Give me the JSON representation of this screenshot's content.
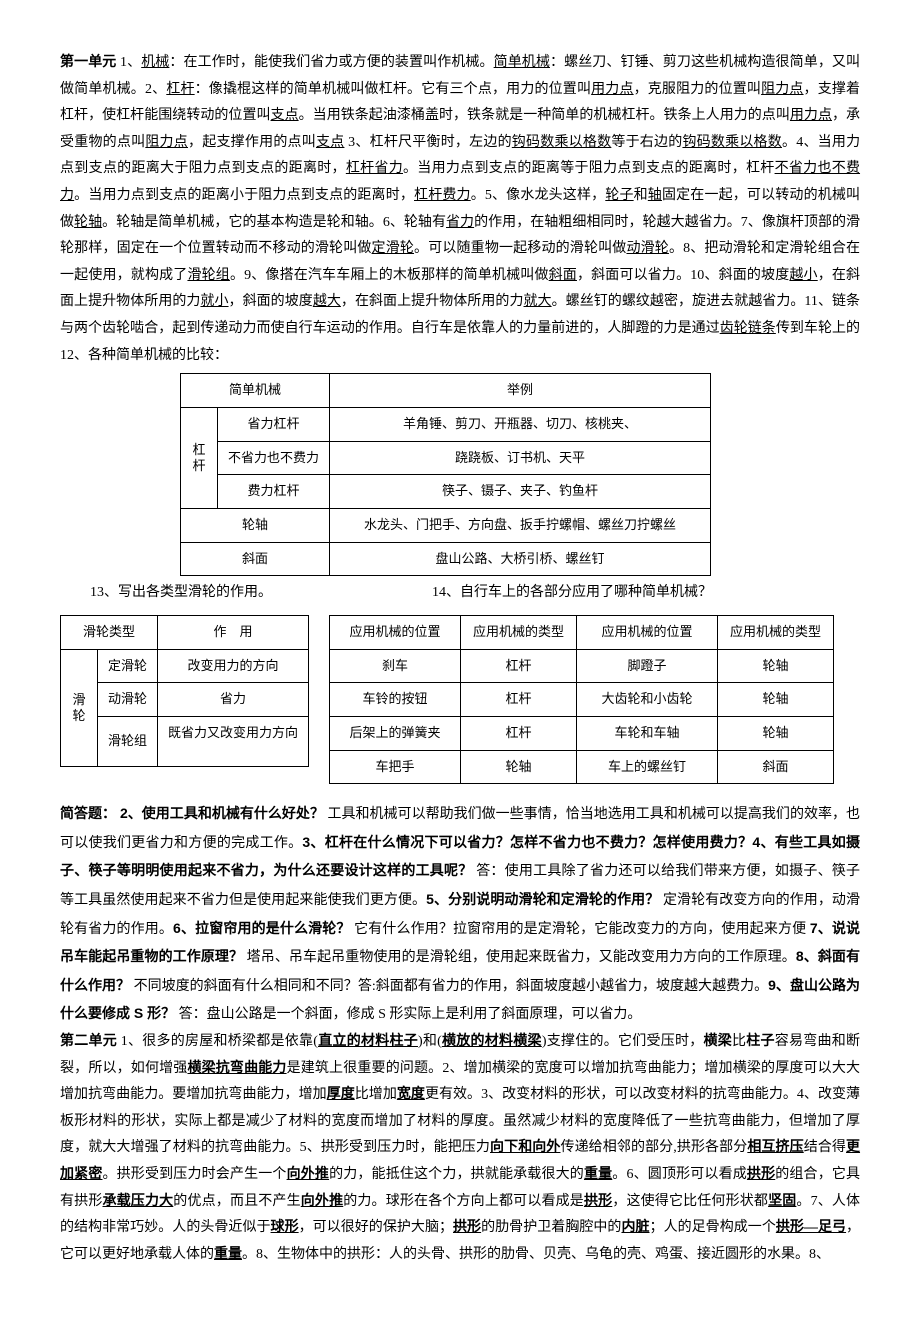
{
  "para1_segments": [
    {
      "t": "第一单元",
      "b": true
    },
    {
      "t": " 1、"
    },
    {
      "t": "机械",
      "u": true
    },
    {
      "t": "：在工作时，能使我们省力或方便的装置叫作机械。"
    },
    {
      "t": "简单机械",
      "u": true
    },
    {
      "t": "：螺丝刀、钉锤、剪刀这些机械构造很简单，又叫做简单机械。2、"
    },
    {
      "t": "杠杆",
      "u": true
    },
    {
      "t": "：像撬棍这样的简单机械叫做杠杆。它有三个点，用力的位置叫"
    },
    {
      "t": "用力点",
      "u": true
    },
    {
      "t": "，克服阻力的位置叫"
    },
    {
      "t": "阻力点",
      "u": true
    },
    {
      "t": "，支撑着杠杆，使杠杆能围绕转动的位置叫"
    },
    {
      "t": "支点",
      "u": true
    },
    {
      "t": "。当用铁条起油漆桶盖时，铁条就是一种简单的机械杠杆。铁条上人用力的点叫"
    },
    {
      "t": "用力点",
      "u": true
    },
    {
      "t": "，承受重物的点叫"
    },
    {
      "t": "阻力点",
      "u": true
    },
    {
      "t": "，起支撑作用的点叫"
    },
    {
      "t": "支点",
      "u": true
    },
    {
      "t": " 3、杠杆尺平衡时，左边的"
    },
    {
      "t": "钩码数乘以格数",
      "u": true
    },
    {
      "t": "等于右边的"
    },
    {
      "t": "钩码数乘以格数",
      "u": true
    },
    {
      "t": "。4、当用力点到支点的距离大于阻力点到支点的距离时，"
    },
    {
      "t": "杠杆省力",
      "u": true
    },
    {
      "t": "。当用力点到支点的距离等于阻力点到支点的距离时，杠杆"
    },
    {
      "t": "不省力也不费力",
      "u": true
    },
    {
      "t": "。当用力点到支点的距离小于阻力点到支点的距离时，"
    },
    {
      "t": "杠杆费力",
      "u": true
    },
    {
      "t": "。5、像水龙头这样，"
    },
    {
      "t": "轮子",
      "u": true
    },
    {
      "t": "和"
    },
    {
      "t": "轴",
      "u": true
    },
    {
      "t": "固定在一起，可以转动的机械叫做"
    },
    {
      "t": "轮轴",
      "u": true
    },
    {
      "t": "。轮轴是简单机械，它的基本构造是轮和轴。6、轮轴有"
    },
    {
      "t": "省力",
      "u": true
    },
    {
      "t": "的作用，在轴粗细相同时，轮越大越省力。7、像旗杆顶部的滑轮那样，固定在一个位置转动而不移动的滑轮叫做"
    },
    {
      "t": "定滑轮",
      "u": true
    },
    {
      "t": "。可以随重物一起移动的滑轮叫做"
    },
    {
      "t": "动滑轮",
      "u": true
    },
    {
      "t": "。8、把动滑轮和定滑轮组合在一起使用，就构成了"
    },
    {
      "t": "滑轮组",
      "u": true
    },
    {
      "t": "。9、像搭在汽车车厢上的木板那样的简单机械叫做"
    },
    {
      "t": "斜面",
      "u": true
    },
    {
      "t": "，斜面可以省力。10、斜面的坡度"
    },
    {
      "t": "越小",
      "u": true
    },
    {
      "t": "，在斜面上提升物体所用的力"
    },
    {
      "t": "就小",
      "u": true
    },
    {
      "t": "，斜面的坡度"
    },
    {
      "t": "越大",
      "u": true
    },
    {
      "t": "，在斜面上提升物体所用的力"
    },
    {
      "t": "就大",
      "u": true
    },
    {
      "t": "。螺丝钉的螺纹越密，旋进去就越省力。11、链条与两个齿轮啮合，起到传递动力而使自行车运动的作用。自行车是依靠人的力量前进的，人脚蹬的力是通过"
    },
    {
      "t": "齿轮链条",
      "u": true
    },
    {
      "t": "传到车轮上的 12、各种简单机械的比较："
    }
  ],
  "table1": {
    "header": [
      "简单机械",
      "举例"
    ],
    "lever_label": "杠杆",
    "lever_rows": [
      [
        "省力杠杆",
        "羊角锤、剪刀、开瓶器、切刀、核桃夹、"
      ],
      [
        "不省力也不费力",
        "跷跷板、订书机、天平"
      ],
      [
        "费力杠杆",
        "筷子、镊子、夹子、钓鱼杆"
      ]
    ],
    "other_rows": [
      [
        "轮轴",
        "水龙头、门把手、方向盘、扳手拧螺帽、螺丝刀拧螺丝"
      ],
      [
        "斜面",
        "盘山公路、大桥引桥、螺丝钉"
      ]
    ]
  },
  "q13": "13、写出各类型滑轮的作用。",
  "q14": "14、自行车上的各部分应用了哪种简单机械？",
  "table2": {
    "header": [
      "滑轮类型",
      "作　用"
    ],
    "group_label": "滑轮",
    "rows": [
      [
        "定滑轮",
        "改变用力的方向"
      ],
      [
        "动滑轮",
        "省力"
      ],
      [
        "滑轮组",
        "既省力又改变用力方向"
      ]
    ]
  },
  "table3": {
    "header": [
      "应用机械的位置",
      "应用机械的类型",
      "应用机械的位置",
      "应用机械的类型"
    ],
    "rows": [
      [
        "刹车",
        "杠杆",
        "脚蹬子",
        "轮轴"
      ],
      [
        "车铃的按钮",
        "杠杆",
        "大齿轮和小齿轮",
        "轮轴"
      ],
      [
        "后架上的弹簧夹",
        "杠杆",
        "车轮和车轴",
        "轮轴"
      ],
      [
        "车把手",
        "轮轴",
        "车上的螺丝钉",
        "斜面"
      ]
    ]
  },
  "qa_segments": [
    {
      "t": "简答题：  2、使用工具和机械有什么好处？",
      "b": true
    },
    {
      "t": " 工具和机械可以帮助我们做一些事情，恰当地选用工具和机械可以提高我们的效率，也可以使我们更省力和方便的完成工作。"
    },
    {
      "t": "3、杠杆在什么情况下可以省力？怎样不省力也不费力？怎样使用费力？4、有些工具如摄子、筷子等明明使用起来不省力，为什么还要设计这样的工具呢？",
      "b": true
    },
    {
      "t": " 答：使用工具除了省力还可以给我们带来方便，如摄子、筷子等工具虽然使用起来不省力但是使用起来能使我们更方便。"
    },
    {
      "t": "5、分别说明动滑轮和定滑轮的作用？",
      "b": true
    },
    {
      "t": " 定滑轮有改变方向的作用，动滑轮有省力的作用。"
    },
    {
      "t": "6、拉窗帘用的是什么滑轮？",
      "b": true
    },
    {
      "t": " 它有什么作用？拉窗帘用的是定滑轮，它能改变力的方向，使用起来方便 "
    },
    {
      "t": "7、说说吊车能起吊重物的工作原理？",
      "b": true
    },
    {
      "t": " 塔吊、吊车起吊重物使用的是滑轮组，使用起来既省力，又能改变用力方向的工作原理。"
    },
    {
      "t": "8、斜面有什么作用？",
      "b": true
    },
    {
      "t": " 不同坡度的斜面有什么相同和不同？答:斜面都有省力的作用，斜面坡度越小越省力，坡度越大越费力。"
    },
    {
      "t": "9、盘山公路为什么要修成 S 形？",
      "b": true
    },
    {
      "t": " 答：盘山公路是一个斜面，修成 S 形实际上是利用了斜面原理，可以省力。"
    }
  ],
  "unit2_segments": [
    {
      "t": "第二单元",
      "b": true
    },
    {
      "t": " 1、很多的房屋和桥梁都是依靠("
    },
    {
      "t": "直立的材料柱子",
      "bu": true
    },
    {
      "t": ")和("
    },
    {
      "t": "横放的材料横梁",
      "bu": true
    },
    {
      "t": ")支撑住的。它们受压时，"
    },
    {
      "t": "横梁",
      "b": true
    },
    {
      "t": "比"
    },
    {
      "t": "柱子",
      "b": true
    },
    {
      "t": "容易弯曲和断裂，所以，如何增强"
    },
    {
      "t": "横梁抗弯曲能力",
      "bu": true
    },
    {
      "t": "是建筑上很重要的问题。2、增加横梁的宽度可以增加抗弯曲能力；增加横梁的厚度可以大大增加抗弯曲能力。要增加抗弯曲能力，增加"
    },
    {
      "t": "厚度",
      "bu": true
    },
    {
      "t": "比增加"
    },
    {
      "t": "宽度",
      "bu": true
    },
    {
      "t": "更有效。3、改变材料的形状，可以改变材料的抗弯曲能力。4、改变薄板形材料的形状，实际上都是减少了材料的宽度而增加了材料的厚度。虽然减少材料的宽度降低了一些抗弯曲能力，但增加了厚度，就大大增强了材料的抗弯曲能力。5、拱形受到压力时，能把压力"
    },
    {
      "t": "向下和向外",
      "bu": true
    },
    {
      "t": "传递给相邻的部分,拱形各部分"
    },
    {
      "t": "相互挤压",
      "bu": true
    },
    {
      "t": "结合得"
    },
    {
      "t": "更加紧密",
      "bu": true
    },
    {
      "t": "。拱形受到压力时会产生一个"
    },
    {
      "t": "向外推",
      "bu": true
    },
    {
      "t": "的力，能抵住这个力，拱就能承载很大的"
    },
    {
      "t": "重量",
      "bu": true
    },
    {
      "t": "。6、圆顶形可以看成"
    },
    {
      "t": "拱形",
      "bu": true
    },
    {
      "t": "的组合，它具有拱形"
    },
    {
      "t": "承载压力大",
      "bu": true
    },
    {
      "t": "的优点，而且不产生"
    },
    {
      "t": "向外推",
      "bu": true
    },
    {
      "t": "的力。球形在各个方向上都可以看成是"
    },
    {
      "t": "拱形",
      "bu": true
    },
    {
      "t": "，这使得它比任何形状都"
    },
    {
      "t": "坚固",
      "bu": true
    },
    {
      "t": "。7、人体的结构非常巧妙。人的头骨近似于"
    },
    {
      "t": "球形",
      "bu": true
    },
    {
      "t": "，可以很好的保护大脑；"
    },
    {
      "t": "拱形",
      "bu": true
    },
    {
      "t": "的肋骨护卫着胸腔中的"
    },
    {
      "t": "内脏",
      "bu": true
    },
    {
      "t": "；人的足骨构成一个"
    },
    {
      "t": "拱形—足弓",
      "bu": true
    },
    {
      "t": "，它可以更好地承载人体的"
    },
    {
      "t": "重量",
      "bu": true
    },
    {
      "t": "。8、生物体中的拱形：人的头骨、拱形的肋骨、贝壳、乌龟的壳、鸡蛋、接近圆形的水果。8、"
    }
  ]
}
